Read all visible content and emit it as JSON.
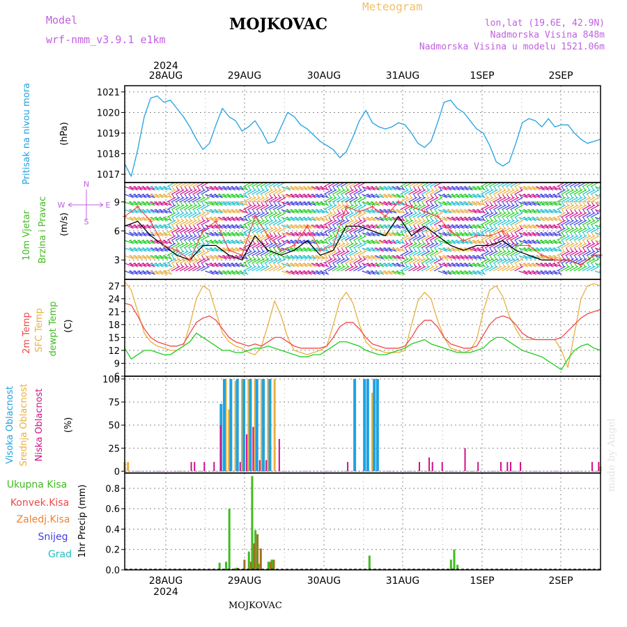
{
  "header": {
    "model_label": "Model",
    "model_name": "wrf-nmm_v3.9.1 e1km",
    "station": "MOJKOVAC",
    "product": "Meteogram",
    "lonlat": "lon,lat (19.6E, 42.9N)",
    "elevation": "Nadmorska Visina 848m",
    "model_elevation": "Nadmorska Visina u modelu 1521.06m",
    "credit": "made by Angel",
    "footer": "MOJKOVAC"
  },
  "time_axis": {
    "top_year": "2024",
    "bottom_year": "2024",
    "days": [
      "28AUG",
      "29AUG",
      "30AUG",
      "31AUG",
      "1SEP",
      "2SEP"
    ]
  },
  "colors": {
    "pressure": "#1fa2e0",
    "wind_speed": "#000000",
    "wind_gust": "#f04848",
    "temp2m": "#f04848",
    "sfc_temp": "#e8b040",
    "dewpt": "#20cc20",
    "high_cloud": "#1fa2e0",
    "mid_cloud": "#e8b040",
    "low_cloud": "#d01088",
    "total_precip": "#40bb20",
    "conv_precip": "#f04848",
    "frozen_precip": "#f08030",
    "snow": "#4040e0",
    "hail": "#20c0c0",
    "compass": "#c060e0"
  },
  "chart_data": [
    {
      "type": "line",
      "panel": "pressure",
      "ylabel": [
        "Pritisak na nivou mora",
        "(hPa)"
      ],
      "yticks": [
        1017,
        1018,
        1019,
        1020,
        1021
      ],
      "ylim": [
        1016.6,
        1021.3
      ],
      "x_unit": "hours from 27 Aug 2024 12:00",
      "series": [
        {
          "x": [
            0,
            2,
            4,
            6,
            8,
            10,
            12,
            14,
            16,
            18,
            20,
            22,
            24,
            26,
            28,
            30,
            32,
            34,
            36,
            38,
            40,
            42,
            44,
            46,
            48,
            50,
            52,
            54,
            56,
            58,
            60,
            62,
            64,
            66,
            68,
            70,
            72,
            74,
            76,
            78,
            80,
            82,
            84,
            86,
            88,
            90,
            92,
            94,
            96,
            98,
            100,
            102,
            104,
            106,
            108,
            110,
            112,
            114,
            116,
            118,
            120,
            122,
            124,
            126,
            128,
            130,
            132,
            134,
            136,
            138,
            140,
            142,
            144,
            146
          ],
          "values": [
            1017.5,
            1016.9,
            1018.2,
            1019.8,
            1020.7,
            1020.8,
            1020.5,
            1020.6,
            1020.2,
            1019.8,
            1019.3,
            1018.7,
            1018.2,
            1018.5,
            1019.4,
            1020.2,
            1019.8,
            1019.6,
            1019.1,
            1019.3,
            1019.6,
            1019.1,
            1018.5,
            1018.6,
            1019.3,
            1020.0,
            1019.8,
            1019.4,
            1019.2,
            1018.9,
            1018.6,
            1018.4,
            1018.2,
            1017.8,
            1018.1,
            1018.8,
            1019.6,
            1020.1,
            1019.5,
            1019.3,
            1019.2,
            1019.3,
            1019.5,
            1019.4,
            1019.0,
            1018.5,
            1018.3,
            1018.6,
            1019.5,
            1020.5,
            1020.6,
            1020.2,
            1020.0,
            1019.6,
            1019.2,
            1019.0,
            1018.4,
            1017.6,
            1017.4,
            1017.6,
            1018.5,
            1019.5,
            1019.7,
            1019.6,
            1019.3,
            1019.7,
            1019.3,
            1019.4,
            1019.4,
            1019.0,
            1018.7,
            1018.5,
            1018.6,
            1018.7
          ]
        }
      ]
    },
    {
      "type": "line",
      "panel": "wind",
      "ylabel": [
        "10m Vjetar",
        "Brzina i Pravac",
        "(m/s)"
      ],
      "compass": [
        "N",
        "S",
        "W",
        "E"
      ],
      "yticks": [
        3,
        6,
        9
      ],
      "ylim": [
        1,
        11
      ],
      "x_unit": "hours from 27 Aug 2024 12:00",
      "series": [
        {
          "name": "speed",
          "x": [
            0,
            4,
            8,
            12,
            16,
            20,
            24,
            28,
            32,
            36,
            40,
            44,
            48,
            52,
            56,
            60,
            64,
            68,
            72,
            76,
            80,
            84,
            88,
            92,
            96,
            100,
            104,
            108,
            112,
            116,
            120,
            124,
            128,
            132,
            136,
            140,
            144,
            146
          ],
          "values": [
            6.5,
            7.0,
            5.5,
            4.5,
            3.5,
            3.0,
            4.5,
            4.5,
            3.5,
            3.0,
            5.5,
            4.0,
            3.5,
            4.0,
            5.0,
            3.5,
            4.0,
            6.5,
            6.5,
            6.0,
            5.5,
            7.5,
            5.5,
            6.5,
            5.5,
            4.5,
            4.0,
            4.5,
            4.5,
            5.0,
            4.0,
            3.5,
            3.0,
            3.0,
            3.0,
            2.5,
            3.5,
            3.5
          ]
        },
        {
          "name": "gust",
          "x": [
            0,
            4,
            8,
            12,
            16,
            20,
            24,
            28,
            32,
            36,
            40,
            44,
            48,
            52,
            56,
            60,
            64,
            68,
            72,
            76,
            80,
            84,
            88,
            92,
            96,
            100,
            104,
            108,
            112,
            116,
            120,
            124,
            128,
            132,
            136,
            140,
            144,
            146
          ],
          "values": [
            7.5,
            8.5,
            7.0,
            4.5,
            4.0,
            3.0,
            6.0,
            7.0,
            4.0,
            3.5,
            7.5,
            5.5,
            4.0,
            4.5,
            6.5,
            4.0,
            4.5,
            8.5,
            8.0,
            8.5,
            7.5,
            9.0,
            8.5,
            8.0,
            7.5,
            6.0,
            5.0,
            5.5,
            5.5,
            6.0,
            4.5,
            4.5,
            3.5,
            3.0,
            3.0,
            2.5,
            3.5,
            3.5
          ]
        }
      ]
    },
    {
      "type": "line",
      "panel": "temperature",
      "ylabel": [
        "2m Temp",
        "SFC Temp",
        "dewpt Temp",
        "(C)"
      ],
      "yticks": [
        6,
        9,
        12,
        15,
        18,
        21,
        24,
        27
      ],
      "ylim": [
        6,
        28.5
      ],
      "x_unit": "hours from 27 Aug 2024 12:00",
      "series": [
        {
          "name": "2m Temp",
          "x": [
            0,
            2,
            4,
            6,
            8,
            10,
            12,
            14,
            16,
            18,
            20,
            22,
            24,
            26,
            28,
            30,
            32,
            34,
            36,
            38,
            40,
            42,
            44,
            46,
            48,
            50,
            52,
            54,
            56,
            58,
            60,
            62,
            64,
            66,
            68,
            70,
            72,
            74,
            76,
            78,
            80,
            82,
            84,
            86,
            88,
            90,
            92,
            94,
            96,
            98,
            100,
            102,
            104,
            106,
            108,
            110,
            112,
            114,
            116,
            118,
            120,
            122,
            124,
            126,
            128,
            130,
            132,
            134,
            136,
            138,
            140,
            142,
            144,
            146
          ],
          "values": [
            23,
            22.5,
            20,
            17,
            15,
            14,
            13.5,
            13,
            13,
            13.5,
            16,
            18.5,
            19.5,
            20,
            19,
            17,
            15,
            14,
            13.5,
            13,
            13.5,
            13,
            14,
            15,
            15,
            14,
            13,
            12.5,
            12.5,
            12.5,
            12.5,
            13,
            15,
            17.5,
            18.5,
            18.5,
            17,
            15,
            13.5,
            13,
            12.5,
            12.5,
            12.5,
            13,
            15,
            17.5,
            19,
            19,
            17.5,
            15,
            13.5,
            13,
            12.5,
            12.5,
            13,
            15.5,
            18,
            19.5,
            20,
            19.5,
            18,
            16,
            15,
            14.5,
            14.5,
            14.5,
            14.5,
            15,
            16.5,
            18,
            19.5,
            20.5,
            21,
            21.5
          ]
        },
        {
          "name": "SFC Temp",
          "x": [
            0,
            2,
            4,
            6,
            8,
            10,
            12,
            14,
            16,
            18,
            20,
            22,
            24,
            26,
            28,
            30,
            32,
            34,
            36,
            38,
            40,
            42,
            44,
            46,
            48,
            50,
            52,
            54,
            56,
            58,
            60,
            62,
            64,
            66,
            68,
            70,
            72,
            74,
            76,
            78,
            80,
            82,
            84,
            86,
            88,
            90,
            92,
            94,
            96,
            98,
            100,
            102,
            104,
            106,
            108,
            110,
            112,
            114,
            116,
            118,
            120,
            122,
            124,
            126,
            128,
            130,
            132,
            134,
            136,
            138,
            140,
            142,
            144,
            146
          ],
          "values": [
            28,
            26,
            21,
            16,
            14,
            13,
            12.5,
            12,
            12,
            13,
            18,
            24,
            27,
            26,
            21,
            16,
            14,
            13,
            12.5,
            11.5,
            11,
            13,
            18,
            23.5,
            20,
            15,
            12,
            11.5,
            11,
            11.5,
            12,
            13,
            18,
            23.5,
            25.5,
            23,
            18,
            14,
            12.5,
            12,
            11.5,
            11.5,
            11.5,
            12,
            18,
            23.5,
            25.5,
            24,
            19,
            15,
            12.5,
            12,
            11.5,
            12,
            14.5,
            21,
            26,
            27,
            24.5,
            20,
            17,
            14.5,
            14.5,
            14.5,
            14.5,
            14.5,
            14.5,
            12,
            8,
            16,
            24,
            27,
            27.5,
            27
          ]
        },
        {
          "name": "dewpt Temp",
          "x": [
            0,
            2,
            4,
            6,
            8,
            10,
            12,
            14,
            16,
            18,
            20,
            22,
            24,
            26,
            28,
            30,
            32,
            34,
            36,
            38,
            40,
            42,
            44,
            46,
            48,
            50,
            52,
            54,
            56,
            58,
            60,
            62,
            64,
            66,
            68,
            70,
            72,
            74,
            76,
            78,
            80,
            82,
            84,
            86,
            88,
            90,
            92,
            94,
            96,
            98,
            100,
            102,
            104,
            106,
            108,
            110,
            112,
            114,
            116,
            118,
            120,
            122,
            124,
            126,
            128,
            130,
            132,
            134,
            136,
            138,
            140,
            142,
            144,
            146
          ],
          "values": [
            12.5,
            10,
            11,
            12,
            12,
            11.5,
            11,
            11,
            12,
            13,
            14,
            16,
            15,
            14,
            13,
            12,
            12,
            11.5,
            11.5,
            12,
            12.5,
            12.5,
            13,
            12.5,
            12,
            11.5,
            11,
            10.5,
            10.5,
            11,
            11,
            12,
            13,
            14,
            14,
            13.5,
            13,
            12,
            11.5,
            11,
            11,
            11.5,
            12,
            12.5,
            13.5,
            14,
            14.5,
            13.5,
            13,
            12.5,
            12,
            11.5,
            11.5,
            11.5,
            12,
            12.5,
            14,
            15,
            15,
            14,
            13,
            12,
            11.5,
            11,
            10.5,
            9.5,
            8.5,
            7.5,
            10,
            12,
            13,
            13.5,
            12.5,
            12
          ]
        }
      ]
    },
    {
      "type": "bar",
      "panel": "cloud",
      "ylabel": [
        "Visoka Oblacnost",
        "Srednja Oblacnost",
        "Niska Oblacnost",
        "(%)"
      ],
      "yticks": [
        0,
        25,
        50,
        75,
        100
      ],
      "ylim": [
        -2,
        103
      ],
      "x_unit": "hours from 27 Aug 2024 12:00",
      "series": [
        {
          "name": "Visoka Oblacnost",
          "x": [
            30,
            31,
            33,
            35,
            37,
            39,
            41,
            43,
            45,
            71,
            74,
            75,
            77,
            78
          ],
          "values": [
            73,
            100,
            100,
            100,
            100,
            100,
            100,
            100,
            100,
            100,
            100,
            100,
            100,
            100
          ]
        },
        {
          "name": "Srednja Oblacnost",
          "x": [
            0,
            1,
            31,
            32,
            34,
            36,
            38,
            40,
            42,
            44,
            46,
            76,
            146
          ],
          "values": [
            10,
            10,
            100,
            67,
            98,
            100,
            100,
            100,
            100,
            100,
            100,
            85,
            5
          ]
        },
        {
          "name": "Niska Oblacnost",
          "x": [
            20,
            21,
            24,
            27,
            29,
            35,
            37,
            39,
            41,
            43,
            47,
            68,
            90,
            93,
            94,
            97,
            104,
            108,
            115,
            117,
            118,
            121,
            143,
            145
          ],
          "values": [
            10,
            10,
            10,
            10,
            50,
            10,
            40,
            48,
            12,
            12,
            35,
            10,
            10,
            15,
            10,
            10,
            25,
            10,
            10,
            10,
            10,
            10,
            10,
            10
          ]
        }
      ]
    },
    {
      "type": "bar",
      "panel": "precip",
      "ylabel": [
        "1hr Precip (mm)"
      ],
      "legend": [
        "Ukupna Kisa",
        "Konvek.Kisa",
        "Zaledj.Kisa",
        "Snijeg",
        "Grad"
      ],
      "yticks": [
        0.0,
        0.2,
        0.4,
        0.6,
        0.8
      ],
      "ylim": [
        0,
        0.95
      ],
      "x_unit": "hours from 27 Aug 2024 12:00",
      "series": [
        {
          "name": "Ukupna Kisa",
          "x": [
            29,
            31,
            32,
            34,
            38,
            39,
            40,
            41,
            44,
            45,
            75,
            100,
            101,
            102
          ],
          "values": [
            0.07,
            0.08,
            0.6,
            0.02,
            0.18,
            0.92,
            0.39,
            0.06,
            0.08,
            0.1,
            0.14,
            0.1,
            0.2,
            0.05
          ]
        },
        {
          "name": "Konvek.Kisa",
          "x": [
            34,
            36,
            38,
            39,
            40,
            41,
            44,
            45
          ],
          "values": [
            0.02,
            0.1,
            0.08,
            0.26,
            0.35,
            0.21,
            0.08,
            0.1
          ]
        }
      ]
    }
  ]
}
